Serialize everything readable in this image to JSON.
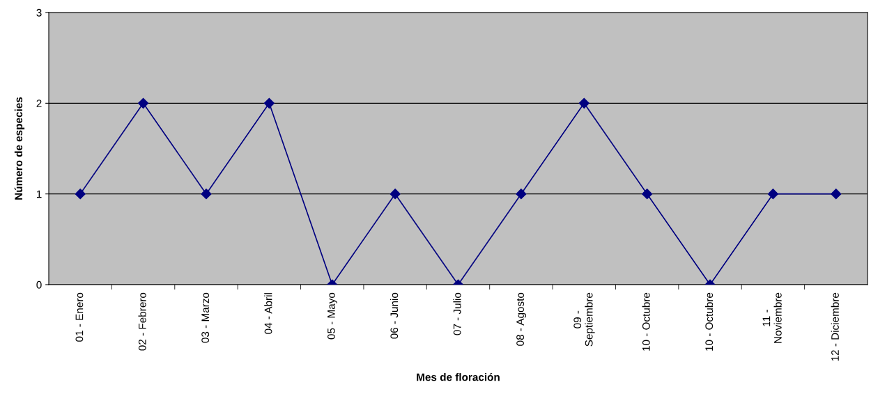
{
  "chart_data": {
    "type": "line",
    "xlabel": "Mes de floración",
    "ylabel": "Número de especies",
    "categories": [
      "01 - Enero",
      "02 - Febrero",
      "03 - Marzo",
      "04 - Abril",
      "05 - Mayo",
      "06 - Junio",
      "07 - Julio",
      "08 - Agosto",
      "09 -\nSeptiembre",
      "10 - Octubre",
      "10 - Octubre",
      "11 -\nNoviembre",
      "12 - Diciembre"
    ],
    "series": [
      {
        "color": "#000080",
        "values": [
          1,
          2,
          1,
          2,
          0,
          1,
          0,
          1,
          2,
          1,
          0,
          1,
          1
        ]
      }
    ],
    "ylim": [
      0,
      3
    ],
    "yticks": [
      0,
      1,
      2,
      3
    ],
    "grid": "y",
    "marker": "diamond",
    "line_style": "solid",
    "legend": false
  }
}
